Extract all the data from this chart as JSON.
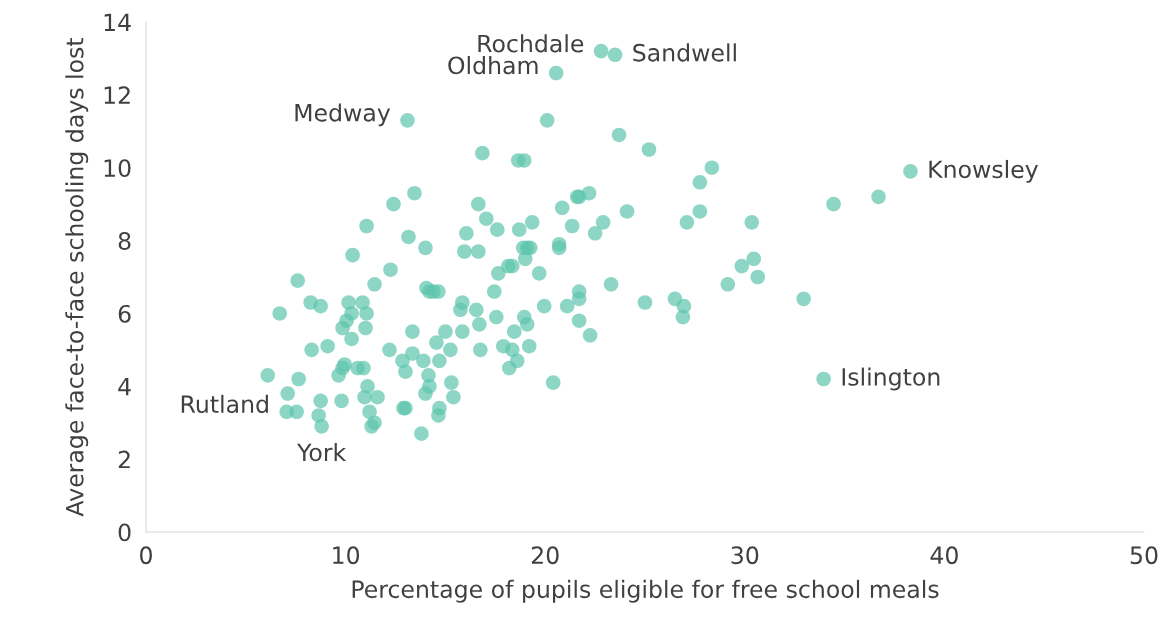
{
  "chart_data": {
    "type": "scatter",
    "xlabel": "Percentage of pupils eligible for free school meals",
    "ylabel": "Average face-to-face schooling days lost",
    "xlim": [
      0,
      50
    ],
    "xticks": [
      0,
      10,
      20,
      30,
      40,
      50
    ],
    "ylim": [
      0,
      14
    ],
    "yticks": [
      0,
      2,
      4,
      6,
      8,
      10,
      12,
      14
    ],
    "grid": false,
    "marker": "circle",
    "series": [
      {
        "color": "#5cc4ad",
        "x": [
          22.8,
          23.5,
          20.55,
          13.1,
          20.1,
          23.7,
          16.85,
          18.65,
          18.95,
          25.2,
          28.35,
          38.3,
          27.75,
          36.7,
          34.45,
          27.75,
          21.6,
          21.7,
          22.2,
          16.65,
          13.45,
          12.4,
          17.05,
          11.05,
          20.85,
          24.1,
          22.9,
          22.5,
          19.35,
          17.6,
          18.7,
          16.05,
          21.35,
          30.35,
          27.1,
          13.15,
          14.0,
          16.65,
          15.95,
          18.9,
          19.1,
          19.25,
          20.7,
          20.7,
          10.35,
          19.0,
          12.25,
          18.15,
          18.35,
          17.65,
          19.7,
          11.45,
          7.6,
          23.3,
          29.15,
          29.85,
          30.45,
          30.65,
          26.95,
          26.5,
          32.95,
          25.0,
          26.9,
          17.45,
          14.05,
          14.2,
          14.4,
          14.65,
          21.7,
          21.7,
          19.95,
          21.1,
          21.7,
          22.25,
          15.85,
          15.75,
          16.55,
          17.55,
          18.95,
          19.1,
          16.7,
          15.0,
          13.35,
          15.85,
          18.45,
          6.7,
          8.25,
          8.75,
          10.15,
          10.85,
          10.05,
          9.85,
          11.0,
          10.3,
          11.05,
          10.3,
          12.2,
          13.35,
          8.3,
          9.1,
          14.55,
          17.9,
          19.2,
          15.25,
          16.75,
          18.35,
          18.6,
          18.2,
          14.7,
          13.9,
          12.85,
          9.85,
          10.6,
          10.9,
          9.65,
          9.95,
          6.1,
          7.65,
          13.0,
          14.15,
          14.2,
          15.3,
          11.1,
          20.4,
          33.95,
          7.1,
          8.75,
          9.8,
          10.95,
          11.6,
          14.0,
          15.4,
          7.05,
          7.55,
          8.65,
          11.2,
          12.9,
          13.0,
          14.7,
          14.65,
          8.8,
          11.3,
          11.45,
          13.8
        ],
        "values": [
          13.2,
          13.1,
          12.6,
          11.3,
          11.3,
          10.9,
          10.4,
          10.2,
          10.2,
          10.5,
          10.0,
          9.9,
          9.6,
          9.2,
          9.0,
          8.8,
          9.2,
          9.2,
          9.3,
          9.0,
          9.3,
          9.0,
          8.6,
          8.4,
          8.9,
          8.8,
          8.5,
          8.2,
          8.5,
          8.3,
          8.3,
          8.2,
          8.4,
          8.5,
          8.5,
          8.1,
          7.8,
          7.7,
          7.7,
          7.8,
          7.8,
          7.8,
          7.8,
          7.9,
          7.6,
          7.5,
          7.2,
          7.3,
          7.3,
          7.1,
          7.1,
          6.8,
          6.9,
          6.8,
          6.8,
          7.3,
          7.5,
          7.0,
          6.2,
          6.4,
          6.4,
          6.3,
          5.9,
          6.6,
          6.7,
          6.6,
          6.6,
          6.6,
          6.6,
          6.4,
          6.2,
          6.2,
          5.8,
          5.4,
          6.3,
          6.1,
          6.1,
          5.9,
          5.9,
          5.7,
          5.7,
          5.5,
          5.5,
          5.5,
          5.5,
          6.0,
          6.3,
          6.2,
          6.3,
          6.3,
          5.8,
          5.6,
          5.6,
          6.0,
          6.0,
          5.3,
          5.0,
          4.9,
          5.0,
          5.1,
          5.2,
          5.1,
          5.1,
          5.0,
          5.0,
          5.0,
          4.7,
          4.5,
          4.7,
          4.7,
          4.7,
          4.5,
          4.5,
          4.5,
          4.3,
          4.6,
          4.3,
          4.2,
          4.4,
          4.3,
          4.0,
          4.1,
          4.0,
          4.1,
          4.2,
          3.8,
          3.6,
          3.6,
          3.7,
          3.7,
          3.8,
          3.7,
          3.3,
          3.3,
          3.2,
          3.3,
          3.4,
          3.4,
          3.4,
          3.2,
          2.9,
          2.9,
          3.0,
          2.7
        ]
      }
    ],
    "annotations": [
      {
        "text": "Rochdale",
        "x": 22.8,
        "y": 13.2
      },
      {
        "text": "Sandwell",
        "x": 23.5,
        "y": 13.1
      },
      {
        "text": "Oldham",
        "x": 20.55,
        "y": 12.6
      },
      {
        "text": "Medway",
        "x": 13.1,
        "y": 11.3
      },
      {
        "text": "Knowsley",
        "x": 38.3,
        "y": 9.9
      },
      {
        "text": "Islington",
        "x": 33.95,
        "y": 4.2
      },
      {
        "text": "Rutland",
        "x": 7.05,
        "y": 3.3
      },
      {
        "text": "York",
        "x": 8.8,
        "y": 2.9
      }
    ]
  }
}
